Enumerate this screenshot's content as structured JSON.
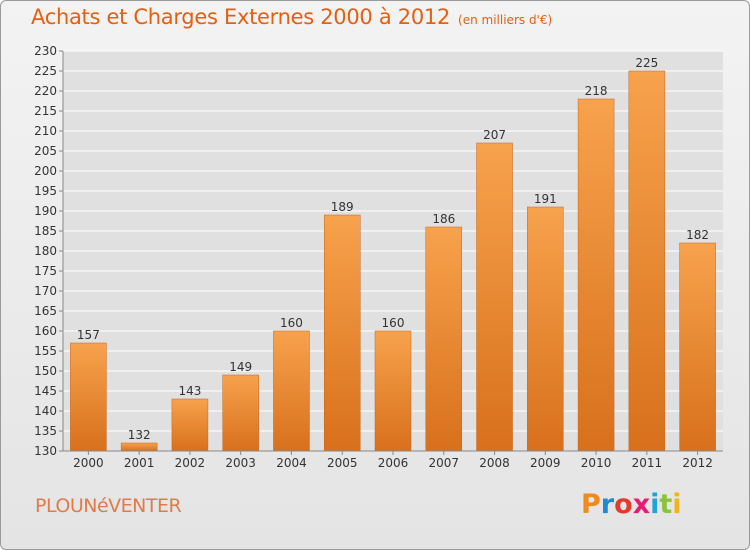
{
  "header": {
    "title": "Achats et Charges Externes 2000 à 2012",
    "subtitle": "(en milliers d'€)"
  },
  "footer": {
    "commune": "PLOUNéVENTER",
    "brand_letters": [
      "P",
      "r",
      "o",
      "x",
      "i",
      "t",
      "i"
    ]
  },
  "colors": {
    "bar_light": "#f7a24d",
    "bar_dark": "#d8701c",
    "title": "#e46010",
    "grid": "#ffffff"
  },
  "chart_data": {
    "type": "bar",
    "title": "Achats et Charges Externes 2000 à 2012",
    "subtitle": "(en milliers d'€)",
    "xlabel": "",
    "ylabel": "",
    "categories": [
      "2000",
      "2001",
      "2002",
      "2003",
      "2004",
      "2005",
      "2006",
      "2007",
      "2008",
      "2009",
      "2010",
      "2011",
      "2012"
    ],
    "values": [
      157,
      132,
      143,
      149,
      160,
      189,
      160,
      186,
      207,
      191,
      218,
      225,
      182
    ],
    "ylim": [
      130,
      230
    ],
    "yticks": [
      130,
      135,
      140,
      145,
      150,
      155,
      160,
      165,
      170,
      175,
      180,
      185,
      190,
      195,
      200,
      205,
      210,
      215,
      220,
      225,
      230
    ],
    "grid": true,
    "data_labels": true
  }
}
